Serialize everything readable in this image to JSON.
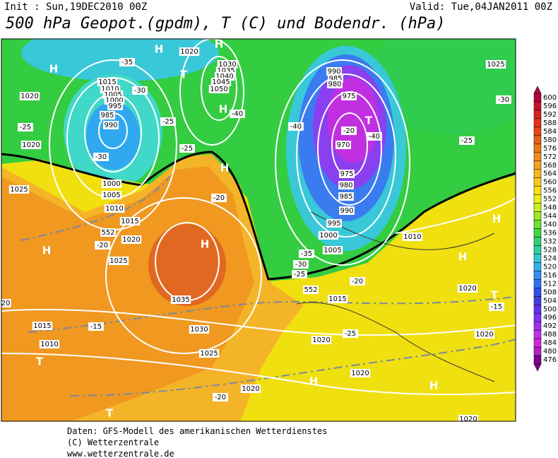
{
  "header": {
    "init": "Init : Sun,19DEC2010 00Z",
    "valid": "Valid: Tue,04JAN2011 00Z",
    "title": "500 hPa Geopot.(gpdm), T (C) und Bodendr. (hPa)"
  },
  "colorbar": {
    "levels": [
      600,
      596,
      592,
      588,
      584,
      580,
      576,
      572,
      568,
      564,
      560,
      556,
      552,
      548,
      544,
      540,
      536,
      532,
      528,
      524,
      520,
      516,
      512,
      508,
      504,
      500,
      496,
      492,
      488,
      484,
      480,
      476
    ],
    "colors": [
      "#b0003c",
      "#c8102e",
      "#d82020",
      "#e83018",
      "#e84818",
      "#e86018",
      "#ec7818",
      "#f08c20",
      "#f4a020",
      "#f8b420",
      "#f8c818",
      "#f8e010",
      "#e8f010",
      "#c8f020",
      "#a0e820",
      "#70e030",
      "#40d840",
      "#30d070",
      "#30d0a0",
      "#30c8d0",
      "#30b0f0",
      "#3090f0",
      "#3070f0",
      "#3050e8",
      "#4040e0",
      "#6030e8",
      "#8030f0",
      "#a030f0",
      "#c030e8",
      "#d028d8",
      "#b020c0",
      "#800090"
    ]
  },
  "map_labels": [
    "H",
    "1020",
    "H",
    "H",
    "T",
    "1030",
    "1035",
    "1040",
    "1045",
    "1050",
    "H",
    "1020",
    "1015",
    "1010",
    "1005",
    "1000",
    "995",
    "985",
    "990",
    "-35",
    "-30",
    "-25",
    "1020",
    "-30",
    "-25",
    "-25",
    "H",
    "1025",
    "1000",
    "1005",
    "1010",
    "1015",
    "1020",
    "-20",
    "-20",
    "552",
    "H",
    "H",
    "1025",
    "1035",
    "20",
    "1015",
    "-15",
    "1030",
    "1010",
    "1025",
    "T",
    "1020",
    "-20",
    "T",
    "990",
    "985",
    "980",
    "975",
    "T",
    "-20",
    "-40",
    "-40",
    "-40",
    "970",
    "975",
    "980",
    "985",
    "990",
    "995",
    "1000",
    "1005",
    "-35",
    "-30",
    "-25",
    "-20",
    "552",
    "1015",
    "1010",
    "1025",
    "-30",
    "-25",
    "H",
    "H",
    "1020",
    "T",
    "-15",
    "1020",
    "-25",
    "1020",
    "1020",
    "H",
    "H",
    "1020"
  ],
  "footer": [
    "Daten: GFS-Modell des amerikanischen Wetterdienstes",
    "(C) Wetterzentrale",
    "www.wetterzentrale.de"
  ]
}
